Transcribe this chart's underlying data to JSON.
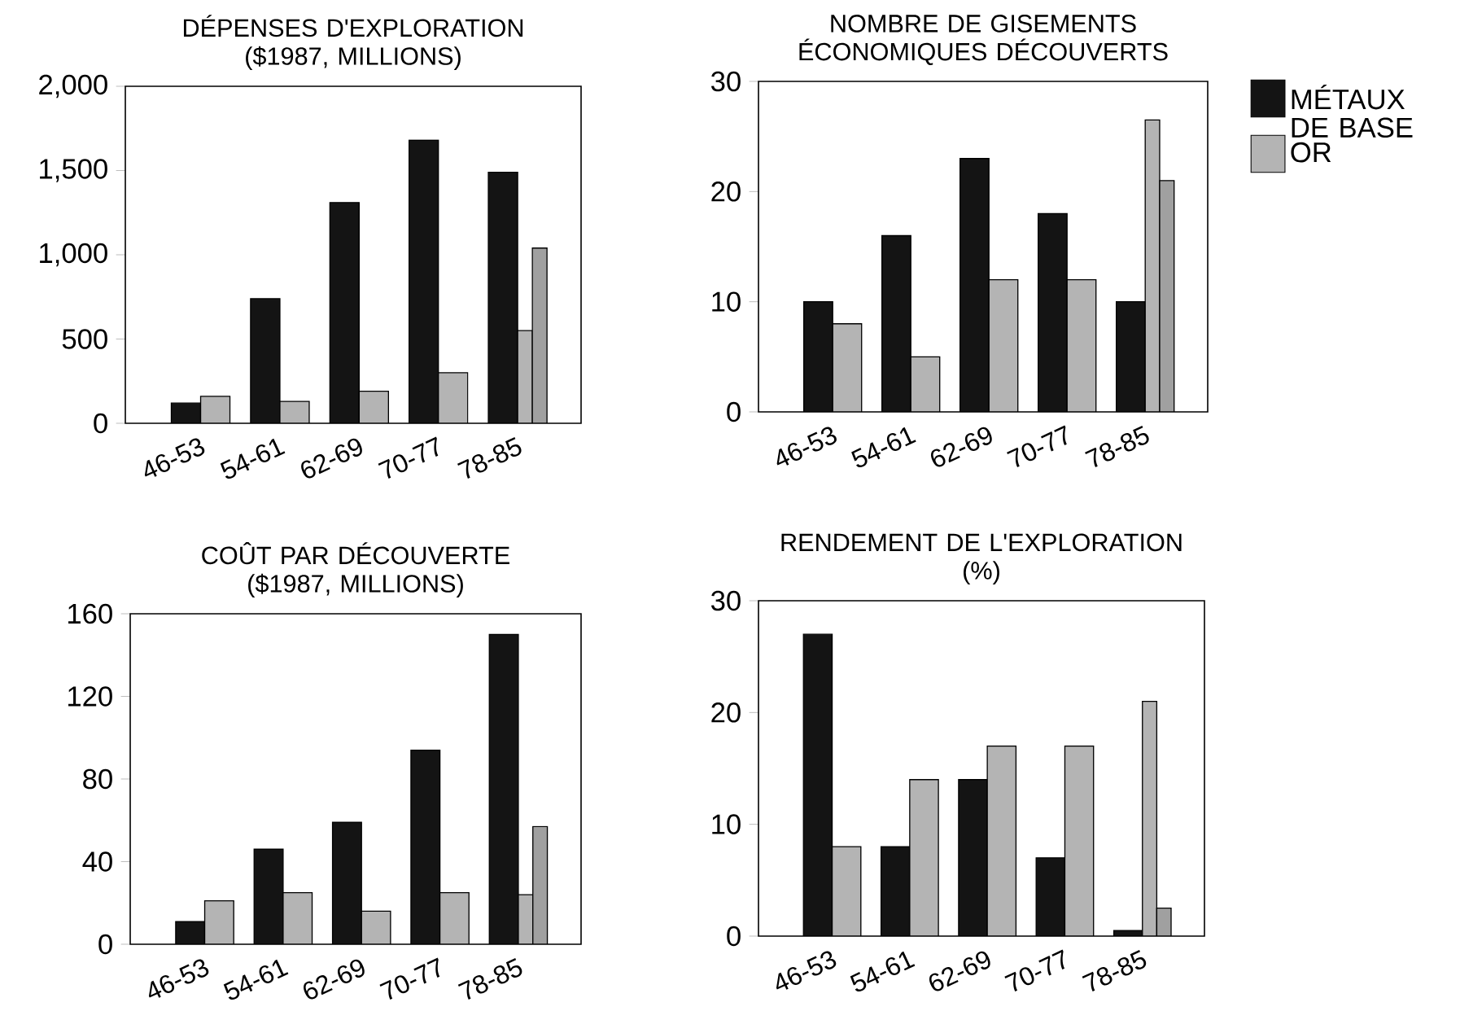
{
  "chart_data": [
    {
      "type": "bar",
      "title": "DÉPENSES D'EXPLORATION",
      "subtitle": "($1987, MILLIONS)",
      "categories": [
        "46-53",
        "54-61",
        "62-69",
        "70-77",
        "78-85"
      ],
      "series": [
        {
          "color": "#141414",
          "values": [
            120,
            740,
            1310,
            1680,
            1490
          ]
        },
        {
          "color": "#b4b4b4",
          "values": [
            160,
            130,
            190,
            300,
            550
          ]
        },
        {
          "color": "#a0a0a0",
          "values": [
            null,
            null,
            null,
            null,
            1040
          ]
        }
      ],
      "ylim": [
        0,
        2000
      ],
      "yticks": [
        0,
        500,
        {
          "value": 1000,
          "label": "1,000"
        },
        {
          "value": 1500,
          "label": "1,500"
        },
        {
          "value": 2000,
          "label": "2,000"
        }
      ]
    },
    {
      "type": "bar",
      "title": "NOMBRE DE GISEMENTS ÉCONOMIQUES DÉCOUVERTS",
      "categories": [
        "46-53",
        "54-61",
        "62-69",
        "70-77",
        "78-85"
      ],
      "series": [
        {
          "name": "MÉTAUX DE BASE",
          "color": "#141414",
          "values": [
            10,
            16,
            23,
            18,
            10
          ]
        },
        {
          "name": "OR",
          "color": "#b4b4b4",
          "values": [
            8,
            5,
            12,
            12,
            26.5
          ]
        },
        {
          "color": "#a0a0a0",
          "values": [
            null,
            null,
            null,
            null,
            21
          ]
        }
      ],
      "ylim": [
        0,
        30
      ],
      "yticks": [
        0,
        10,
        20,
        30
      ],
      "legend": "right"
    },
    {
      "type": "bar",
      "title": "COÛT PAR DÉCOUVERTE",
      "subtitle": "($1987, MILLIONS)",
      "categories": [
        "46-53",
        "54-61",
        "62-69",
        "70-77",
        "78-85"
      ],
      "series": [
        {
          "color": "#141414",
          "values": [
            11,
            46,
            59,
            94,
            150
          ]
        },
        {
          "color": "#b4b4b4",
          "values": [
            21,
            25,
            16,
            25,
            24
          ]
        },
        {
          "color": "#a0a0a0",
          "values": [
            null,
            null,
            null,
            null,
            57
          ]
        }
      ],
      "ylim": [
        0,
        160
      ],
      "yticks": [
        0,
        40,
        80,
        120,
        160
      ]
    },
    {
      "type": "bar",
      "title": "RENDEMENT DE L'EXPLORATION",
      "subtitle": "(%)",
      "categories": [
        "46-53",
        "54-61",
        "62-69",
        "70-77",
        "78-85"
      ],
      "series": [
        {
          "color": "#141414",
          "values": [
            27,
            8,
            14,
            7,
            0.5
          ]
        },
        {
          "color": "#b4b4b4",
          "values": [
            8,
            14,
            17,
            17,
            21
          ]
        },
        {
          "color": "#a0a0a0",
          "values": [
            null,
            null,
            null,
            null,
            2.5
          ]
        }
      ],
      "ylim": [
        0,
        30
      ],
      "yticks": [
        0,
        10,
        20,
        30
      ]
    }
  ]
}
